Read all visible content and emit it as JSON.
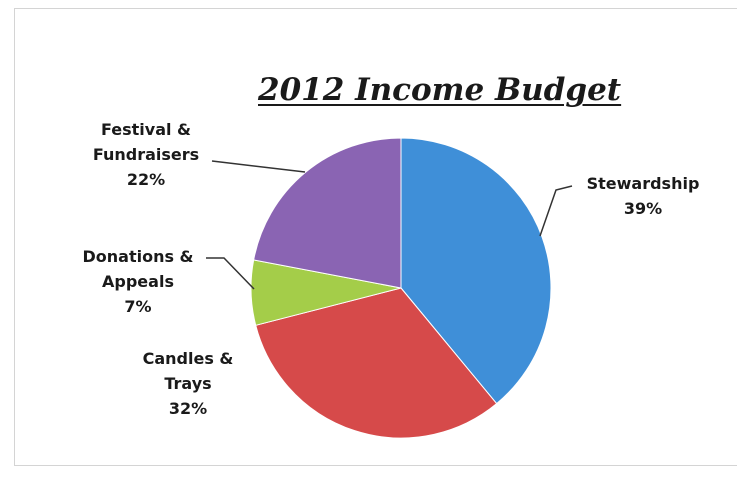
{
  "chart_data": {
    "type": "pie",
    "title": "2012 Income Budget",
    "slices": [
      {
        "label_lines": [
          "Stewardship"
        ],
        "percent_label": "39%",
        "value": 39,
        "color": "#3f8fd8"
      },
      {
        "label_lines": [
          "Candles &",
          "Trays"
        ],
        "percent_label": "32%",
        "value": 32,
        "color": "#d64a4a"
      },
      {
        "label_lines": [
          "Donations &",
          "Appeals"
        ],
        "percent_label": "7%",
        "value": 7,
        "color": "#a4cd49"
      },
      {
        "label_lines": [
          "Festival &",
          "Fundraisers"
        ],
        "percent_label": "22%",
        "value": 22,
        "color": "#8a64b3"
      }
    ],
    "start_angle_deg": 0,
    "direction": "clockwise",
    "legend": "none"
  }
}
